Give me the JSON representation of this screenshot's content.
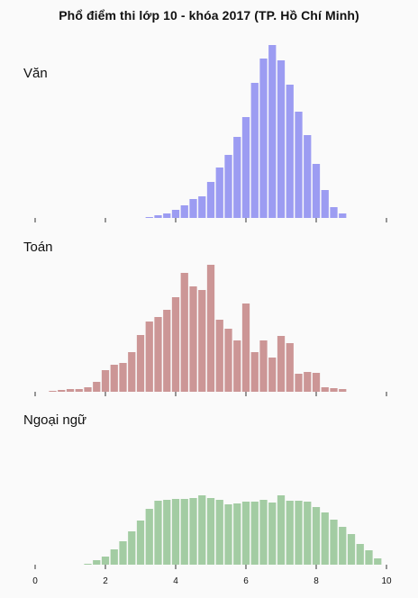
{
  "title": "Phổ điểm thi lớp 10 - khóa 2017 (TP. Hồ Chí Minh)",
  "colors": {
    "van": "#9c9cf2",
    "toan": "#cc9696",
    "ngoaingu": "#a3cca3",
    "axis": "#333333",
    "background": "#fafafa"
  },
  "chart_data": [
    {
      "type": "bar",
      "title": "Văn",
      "x_range": [
        0,
        10
      ],
      "bin_width": 0.25,
      "x": [
        3.25,
        3.5,
        3.75,
        4.0,
        4.25,
        4.5,
        4.75,
        5.0,
        5.25,
        5.5,
        5.75,
        6.0,
        6.25,
        6.5,
        6.75,
        7.0,
        7.25,
        7.5,
        7.75,
        8.0,
        8.25,
        8.5,
        8.75
      ],
      "values": [
        1,
        3,
        5,
        9,
        14,
        21,
        24,
        40,
        56,
        70,
        90,
        112,
        150,
        177,
        192,
        175,
        148,
        118,
        92,
        60,
        31,
        12,
        5
      ],
      "x_ticks": [
        0,
        2,
        4,
        6,
        8,
        10
      ],
      "x_tick_labels_shown": false
    },
    {
      "type": "bar",
      "title": "Toán",
      "x_range": [
        0,
        10
      ],
      "bin_width": 0.25,
      "x": [
        0.5,
        0.75,
        1.0,
        1.25,
        1.5,
        1.75,
        2.0,
        2.25,
        2.5,
        2.75,
        3.0,
        3.25,
        3.5,
        3.75,
        4.0,
        4.25,
        4.5,
        4.75,
        5.0,
        5.25,
        5.5,
        5.75,
        6.0,
        6.25,
        6.5,
        6.75,
        7.0,
        7.25,
        7.5,
        7.75,
        8.0,
        8.25,
        8.5,
        8.75
      ],
      "values": [
        1,
        2,
        3,
        3,
        5,
        11,
        24,
        30,
        32,
        44,
        63,
        78,
        83,
        91,
        105,
        132,
        117,
        113,
        141,
        80,
        70,
        57,
        98,
        44,
        57,
        38,
        62,
        54,
        20,
        22,
        21,
        5,
        4,
        3
      ],
      "x_ticks": [
        0,
        2,
        4,
        6,
        8,
        10
      ],
      "x_tick_labels_shown": false
    },
    {
      "type": "bar",
      "title": "Ngoại ngữ",
      "x_range": [
        0,
        10
      ],
      "bin_width": 0.25,
      "x": [
        1.5,
        1.75,
        2.0,
        2.25,
        2.5,
        2.75,
        3.0,
        3.25,
        3.5,
        3.75,
        4.0,
        4.25,
        4.5,
        4.75,
        5.0,
        5.25,
        5.5,
        5.75,
        6.0,
        6.25,
        6.5,
        6.75,
        7.0,
        7.25,
        7.5,
        7.75,
        8.0,
        8.25,
        8.5,
        8.75,
        9.0,
        9.25,
        9.5,
        9.75
      ],
      "values": [
        1,
        5,
        9,
        17,
        26,
        37,
        49,
        62,
        71,
        72,
        73,
        73,
        74,
        77,
        74,
        72,
        67,
        68,
        70,
        70,
        72,
        69,
        77,
        71,
        71,
        70,
        64,
        58,
        50,
        42,
        34,
        23,
        16,
        7
      ],
      "x_ticks": [
        0,
        2,
        4,
        6,
        8,
        10
      ],
      "x_tick_labels": [
        "0",
        "2",
        "4",
        "6",
        "8",
        "10"
      ],
      "x_tick_labels_shown": true
    }
  ]
}
